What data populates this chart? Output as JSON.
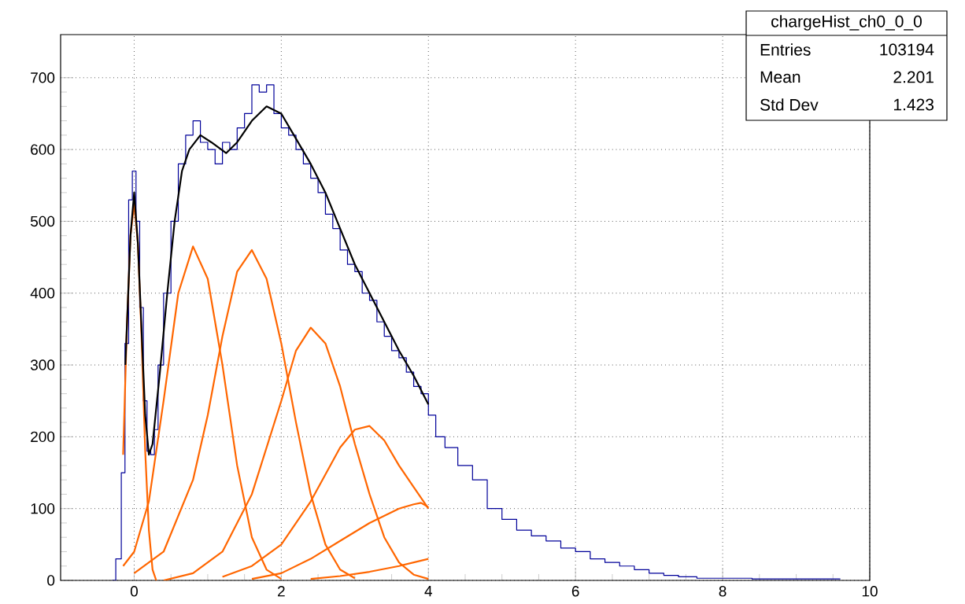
{
  "chart_data": {
    "type": "line",
    "title": "chargeHist_ch0_0_0",
    "annotations": [
      "Entries",
      "103194",
      "Mean",
      "2.201",
      "Std Dev",
      "1.423"
    ],
    "xlim": [
      -1,
      10
    ],
    "ylim": [
      0,
      760
    ],
    "xticks": [
      0,
      2,
      4,
      6,
      8,
      10
    ],
    "yticks": [
      0,
      100,
      200,
      300,
      400,
      500,
      600,
      700
    ],
    "grid": true,
    "series": [
      {
        "type": "step",
        "color": "#000099",
        "x": [
          -0.3,
          -0.2,
          -0.15,
          -0.1,
          -0.05,
          0,
          0.05,
          0.1,
          0.15,
          0.2,
          0.25,
          0.3,
          0.35,
          0.45,
          0.55,
          0.65,
          0.75,
          0.85,
          0.95,
          1.05,
          1.15,
          1.25,
          1.35,
          1.45,
          1.55,
          1.65,
          1.75,
          1.85,
          1.95,
          2.05,
          2.15,
          2.25,
          2.35,
          2.45,
          2.55,
          2.65,
          2.75,
          2.85,
          2.95,
          3.05,
          3.15,
          3.25,
          3.35,
          3.45,
          3.55,
          3.65,
          3.75,
          3.85,
          3.95,
          4.05,
          4.15,
          4.3,
          4.5,
          4.7,
          4.9,
          5.1,
          5.3,
          5.5,
          5.7,
          5.9,
          6.1,
          6.3,
          6.5,
          6.7,
          6.9,
          7.1,
          7.3,
          7.5,
          7.8,
          8.2,
          8.6,
          9.0,
          9.6
        ],
        "values": [
          0,
          30,
          150,
          330,
          530,
          570,
          500,
          380,
          250,
          180,
          175,
          210,
          300,
          400,
          500,
          580,
          620,
          640,
          610,
          600,
          580,
          610,
          600,
          630,
          650,
          690,
          680,
          690,
          650,
          630,
          620,
          600,
          580,
          560,
          540,
          510,
          490,
          460,
          440,
          430,
          400,
          390,
          360,
          340,
          320,
          310,
          290,
          270,
          260,
          230,
          200,
          185,
          160,
          140,
          100,
          85,
          70,
          62,
          55,
          45,
          40,
          30,
          25,
          20,
          15,
          10,
          7,
          5,
          3,
          3,
          2,
          2,
          2
        ]
      },
      {
        "color": "#ff6600",
        "x": [
          -0.15,
          -0.1,
          -0.05,
          0,
          0.05,
          0.1,
          0.15,
          0.2,
          0.25,
          0.3
        ],
        "values": [
          175,
          350,
          480,
          525,
          470,
          340,
          180,
          70,
          15,
          0
        ]
      },
      {
        "color": "#ff6600",
        "x": [
          -0.15,
          0,
          0.2,
          0.4,
          0.6,
          0.8,
          1.0,
          1.2,
          1.4,
          1.6,
          1.8,
          2.0
        ],
        "values": [
          20,
          40,
          110,
          250,
          400,
          465,
          420,
          300,
          160,
          60,
          15,
          2
        ]
      },
      {
        "color": "#ff6600",
        "x": [
          0,
          0.4,
          0.8,
          1.0,
          1.2,
          1.4,
          1.6,
          1.8,
          2.0,
          2.2,
          2.4,
          2.6,
          2.8,
          3.0
        ],
        "values": [
          10,
          40,
          140,
          230,
          340,
          430,
          460,
          420,
          330,
          220,
          120,
          50,
          15,
          3
        ]
      },
      {
        "color": "#ff6600",
        "x": [
          0.4,
          0.8,
          1.2,
          1.6,
          2.0,
          2.2,
          2.4,
          2.6,
          2.8,
          3.0,
          3.2,
          3.4,
          3.6,
          3.8,
          4.0
        ],
        "values": [
          0,
          10,
          40,
          120,
          250,
          320,
          352,
          330,
          270,
          190,
          120,
          60,
          25,
          8,
          2
        ]
      },
      {
        "color": "#ff6600",
        "x": [
          1.2,
          1.6,
          2.0,
          2.4,
          2.8,
          3.0,
          3.2,
          3.4,
          3.6,
          3.8,
          4.0
        ],
        "values": [
          5,
          20,
          50,
          110,
          185,
          210,
          215,
          195,
          160,
          130,
          100
        ]
      },
      {
        "color": "#ff6600",
        "x": [
          1.6,
          2.0,
          2.4,
          2.8,
          3.2,
          3.6,
          3.8,
          3.9,
          4.0
        ],
        "values": [
          2,
          10,
          30,
          55,
          80,
          100,
          106,
          108,
          102
        ]
      },
      {
        "color": "#ff6600",
        "x": [
          2.4,
          2.8,
          3.2,
          3.6,
          4.0
        ],
        "values": [
          2,
          6,
          12,
          20,
          30
        ]
      },
      {
        "color": "#000000",
        "x": [
          -0.12,
          -0.05,
          0,
          0.05,
          0.1,
          0.15,
          0.2,
          0.25,
          0.35,
          0.45,
          0.55,
          0.65,
          0.75,
          0.9,
          1.05,
          1.25,
          1.4,
          1.6,
          1.8,
          2.0,
          2.2,
          2.4,
          2.6,
          2.8,
          3.0,
          3.2,
          3.4,
          3.6,
          3.8,
          4.0
        ],
        "values": [
          300,
          480,
          540,
          470,
          350,
          230,
          175,
          190,
          290,
          400,
          500,
          570,
          600,
          620,
          610,
          595,
          610,
          640,
          660,
          650,
          615,
          580,
          540,
          490,
          440,
          400,
          360,
          320,
          285,
          245
        ]
      }
    ]
  }
}
